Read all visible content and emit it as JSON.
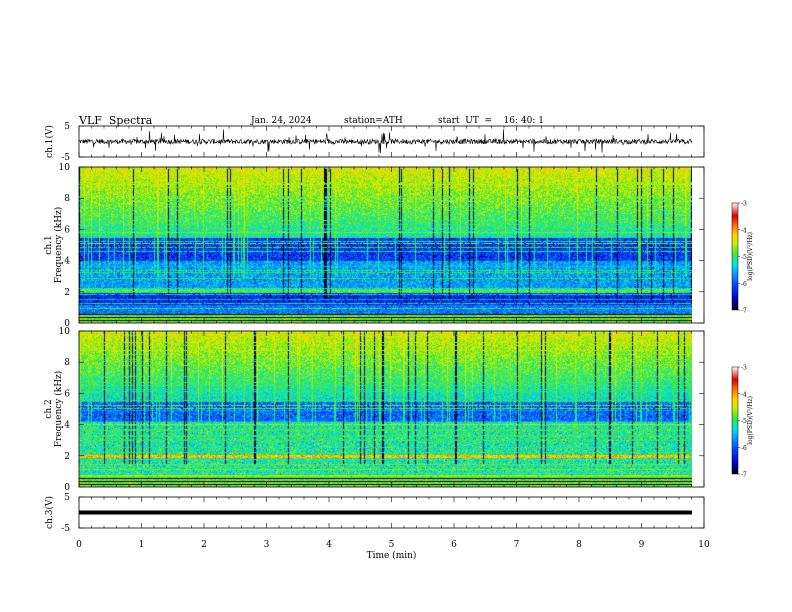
{
  "header": {
    "title": "VLF  Spectra",
    "date": "Jan. 24, 2024",
    "station": "station=ATH",
    "start_ut": "start  UT  =    16: 40: 1"
  },
  "chart_data": [
    {
      "type": "line",
      "name": "ch1-waveform",
      "ylabel": "ch.1(V)",
      "ylim": [
        -5,
        5
      ],
      "yticks": [
        "5",
        "-5"
      ],
      "xlim": [
        0,
        10
      ],
      "data_extent_min": 9.8,
      "baseline_v": 0
    },
    {
      "type": "heatmap",
      "name": "ch1-spectrogram",
      "ylabel": "ch.1\nFrequency  (kHz)",
      "ylabel_line1": "ch.1",
      "ylabel_line2": "Frequency  (kHz)",
      "ylim": [
        0,
        10
      ],
      "yticks": [
        "0",
        "2",
        "4",
        "6",
        "8",
        "10"
      ],
      "xlim": [
        0,
        10
      ],
      "data_extent_min": 9.8,
      "color_scale": {
        "label": "log(PSD)(V²/Hz)",
        "range": [
          -7,
          -3
        ],
        "ticks": [
          "-3",
          "-4",
          "-5",
          "-6",
          "-7"
        ]
      }
    },
    {
      "type": "heatmap",
      "name": "ch2-spectrogram",
      "ylabel": "ch.2\nFrequency  (kHz)",
      "ylabel_line1": "ch.2",
      "ylabel_line2": "Frequency  (kHz)",
      "ylim": [
        0,
        10
      ],
      "yticks": [
        "0",
        "2",
        "4",
        "6",
        "8",
        "10"
      ],
      "xlim": [
        0,
        10
      ],
      "data_extent_min": 9.8,
      "color_scale": {
        "label": "log(PSD)(V²/Hz)",
        "range": [
          -7,
          -3
        ],
        "ticks": [
          "-3",
          "-4",
          "-5",
          "-6",
          "-7"
        ]
      }
    },
    {
      "type": "line",
      "name": "ch3-waveform",
      "ylabel": "ch.3(V)",
      "ylim": [
        -5,
        5
      ],
      "yticks": [
        "5",
        "-5"
      ],
      "xlim": [
        0,
        10
      ],
      "data_extent_min": 9.8,
      "baseline_v": 0
    }
  ],
  "x_axis": {
    "label": "Time  (min)",
    "ticks": [
      "0",
      "1",
      "2",
      "3",
      "4",
      "5",
      "6",
      "7",
      "8",
      "9",
      "10"
    ]
  },
  "colors": {
    "spectrum": [
      "#000000",
      "#0000c8",
      "#0a3cff",
      "#0096ff",
      "#00e6e6",
      "#3ce63c",
      "#c8f000",
      "#ffd200",
      "#ff6400",
      "#dc0000",
      "#ffffff"
    ]
  }
}
